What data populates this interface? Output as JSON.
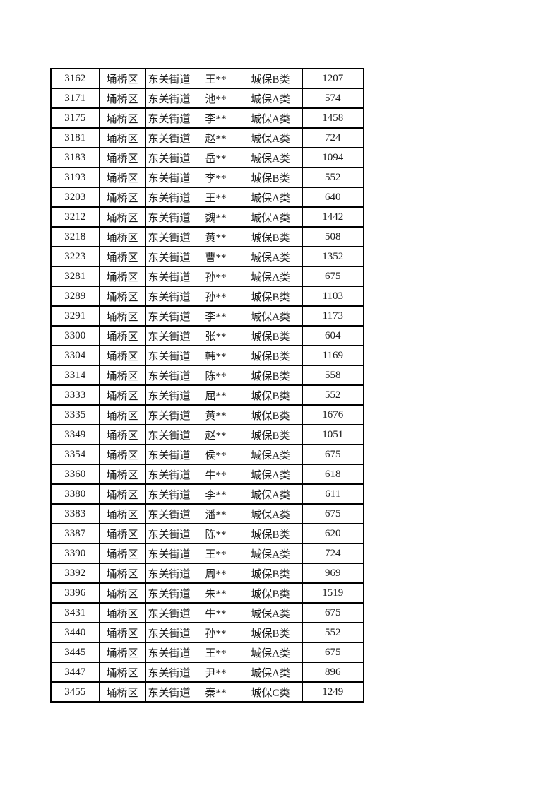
{
  "document": {
    "page_background": "#ffffff",
    "text_color": "#1b1b1b",
    "border_color": "#000000"
  },
  "table": {
    "column_keys": [
      "serial",
      "district",
      "street",
      "name",
      "category",
      "amount"
    ],
    "rows": [
      [
        "3162",
        "埇桥区",
        "东关街道",
        "王**",
        "城保B类",
        "1207"
      ],
      [
        "3171",
        "埇桥区",
        "东关街道",
        "池**",
        "城保A类",
        "574"
      ],
      [
        "3175",
        "埇桥区",
        "东关街道",
        "李**",
        "城保A类",
        "1458"
      ],
      [
        "3181",
        "埇桥区",
        "东关街道",
        "赵**",
        "城保A类",
        "724"
      ],
      [
        "3183",
        "埇桥区",
        "东关街道",
        "岳**",
        "城保A类",
        "1094"
      ],
      [
        "3193",
        "埇桥区",
        "东关街道",
        "李**",
        "城保B类",
        "552"
      ],
      [
        "3203",
        "埇桥区",
        "东关街道",
        "王**",
        "城保A类",
        "640"
      ],
      [
        "3212",
        "埇桥区",
        "东关街道",
        "魏**",
        "城保A类",
        "1442"
      ],
      [
        "3218",
        "埇桥区",
        "东关街道",
        "黄**",
        "城保B类",
        "508"
      ],
      [
        "3223",
        "埇桥区",
        "东关街道",
        "曹**",
        "城保A类",
        "1352"
      ],
      [
        "3281",
        "埇桥区",
        "东关街道",
        "孙**",
        "城保A类",
        "675"
      ],
      [
        "3289",
        "埇桥区",
        "东关街道",
        "孙**",
        "城保B类",
        "1103"
      ],
      [
        "3291",
        "埇桥区",
        "东关街道",
        "李**",
        "城保A类",
        "1173"
      ],
      [
        "3300",
        "埇桥区",
        "东关街道",
        "张**",
        "城保B类",
        "604"
      ],
      [
        "3304",
        "埇桥区",
        "东关街道",
        "韩**",
        "城保B类",
        "1169"
      ],
      [
        "3314",
        "埇桥区",
        "东关街道",
        "陈**",
        "城保B类",
        "558"
      ],
      [
        "3333",
        "埇桥区",
        "东关街道",
        "屈**",
        "城保B类",
        "552"
      ],
      [
        "3335",
        "埇桥区",
        "东关街道",
        "黄**",
        "城保B类",
        "1676"
      ],
      [
        "3349",
        "埇桥区",
        "东关街道",
        "赵**",
        "城保B类",
        "1051"
      ],
      [
        "3354",
        "埇桥区",
        "东关街道",
        "侯**",
        "城保A类",
        "675"
      ],
      [
        "3360",
        "埇桥区",
        "东关街道",
        "牛**",
        "城保A类",
        "618"
      ],
      [
        "3380",
        "埇桥区",
        "东关街道",
        "李**",
        "城保A类",
        "611"
      ],
      [
        "3383",
        "埇桥区",
        "东关街道",
        "潘**",
        "城保A类",
        "675"
      ],
      [
        "3387",
        "埇桥区",
        "东关街道",
        "陈**",
        "城保B类",
        "620"
      ],
      [
        "3390",
        "埇桥区",
        "东关街道",
        "王**",
        "城保A类",
        "724"
      ],
      [
        "3392",
        "埇桥区",
        "东关街道",
        "周**",
        "城保B类",
        "969"
      ],
      [
        "3396",
        "埇桥区",
        "东关街道",
        "朱**",
        "城保B类",
        "1519"
      ],
      [
        "3431",
        "埇桥区",
        "东关街道",
        "牛**",
        "城保A类",
        "675"
      ],
      [
        "3440",
        "埇桥区",
        "东关街道",
        "孙**",
        "城保B类",
        "552"
      ],
      [
        "3445",
        "埇桥区",
        "东关街道",
        "王**",
        "城保A类",
        "675"
      ],
      [
        "3447",
        "埇桥区",
        "东关街道",
        "尹**",
        "城保A类",
        "896"
      ],
      [
        "3455",
        "埇桥区",
        "东关街道",
        "秦**",
        "城保C类",
        "1249"
      ]
    ]
  }
}
